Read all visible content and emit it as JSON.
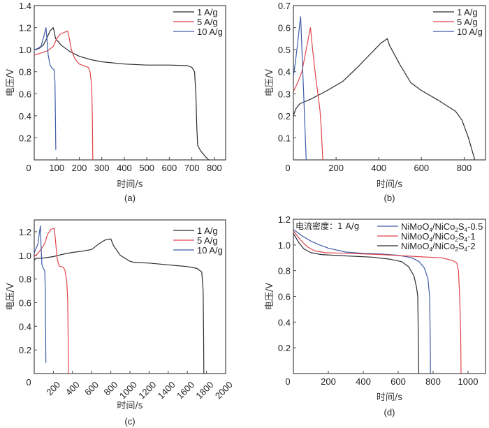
{
  "figure": {
    "colors": {
      "1 A/g": "#2b2b33",
      "5 A/g": "#e0454c",
      "10 A/g": "#3d5ca8",
      "axis": "#444444"
    }
  },
  "chart_data": [
    {
      "id": "a",
      "type": "line",
      "panel_label": "(a)",
      "title": "",
      "xlabel": "时间/s",
      "ylabel": "电压/V",
      "xlim": [
        0,
        850
      ],
      "ylim": [
        0,
        1.4
      ],
      "xticks": [
        0,
        100,
        200,
        300,
        400,
        500,
        600,
        700,
        800
      ],
      "yticks": [
        0.2,
        0.4,
        0.6,
        0.8,
        1.0,
        1.2,
        1.4
      ],
      "xtick_labels": [
        "0",
        "100",
        "200",
        "300",
        "400",
        "500",
        "600",
        "700",
        "800"
      ],
      "ytick_labels": [
        "0.2",
        "0.4",
        "0.6",
        "0.8",
        "1.0",
        "1.2",
        "1.4"
      ],
      "rotate_xticks": false,
      "legend": "top-right",
      "series": [
        {
          "name": "1 A/g",
          "color": "#2b2b33",
          "points": [
            [
              0,
              1.0
            ],
            [
              20,
              1.01
            ],
            [
              40,
              1.04
            ],
            [
              55,
              1.1
            ],
            [
              70,
              1.17
            ],
            [
              84,
              1.2
            ],
            [
              88,
              1.17
            ],
            [
              95,
              1.1
            ],
            [
              120,
              1.04
            ],
            [
              160,
              0.98
            ],
            [
              200,
              0.94
            ],
            [
              250,
              0.91
            ],
            [
              300,
              0.89
            ],
            [
              400,
              0.87
            ],
            [
              500,
              0.86
            ],
            [
              600,
              0.86
            ],
            [
              680,
              0.855
            ],
            [
              700,
              0.84
            ],
            [
              712,
              0.8
            ],
            [
              718,
              0.6
            ],
            [
              722,
              0.3
            ],
            [
              726,
              0.13
            ],
            [
              740,
              0.08
            ],
            [
              760,
              0.03
            ],
            [
              775,
              0.0
            ]
          ]
        },
        {
          "name": "5 A/g",
          "color": "#e0454c",
          "points": [
            [
              0,
              0.95
            ],
            [
              30,
              0.97
            ],
            [
              60,
              0.99
            ],
            [
              85,
              1.03
            ],
            [
              100,
              1.1
            ],
            [
              115,
              1.14
            ],
            [
              148,
              1.17
            ],
            [
              152,
              1.14
            ],
            [
              165,
              1.0
            ],
            [
              180,
              0.92
            ],
            [
              200,
              0.87
            ],
            [
              225,
              0.85
            ],
            [
              240,
              0.84
            ],
            [
              248,
              0.8
            ],
            [
              255,
              0.68
            ],
            [
              258,
              0.4
            ],
            [
              260,
              0.0
            ]
          ]
        },
        {
          "name": "10 A/g",
          "color": "#3d5ca8",
          "points": [
            [
              0,
              1.0
            ],
            [
              15,
              1.01
            ],
            [
              30,
              1.03
            ],
            [
              40,
              1.1
            ],
            [
              52,
              1.2
            ],
            [
              56,
              1.1
            ],
            [
              62,
              0.95
            ],
            [
              70,
              0.86
            ],
            [
              80,
              0.83
            ],
            [
              88,
              0.82
            ],
            [
              92,
              0.7
            ],
            [
              94,
              0.4
            ],
            [
              96,
              0.09
            ]
          ]
        }
      ]
    },
    {
      "id": "b",
      "type": "line",
      "panel_label": "(b)",
      "title": "",
      "xlabel": "时间/s",
      "ylabel": "电压/V",
      "xlim": [
        0,
        900
      ],
      "ylim": [
        0,
        0.7
      ],
      "xticks": [
        0,
        200,
        400,
        600,
        800
      ],
      "yticks": [
        0.1,
        0.2,
        0.3,
        0.4,
        0.5,
        0.6,
        0.7
      ],
      "xtick_labels": [
        "0",
        "200",
        "400",
        "600",
        "800"
      ],
      "ytick_labels": [
        "0.1",
        "0.2",
        "0.3",
        "0.4",
        "0.5",
        "0.6",
        "0.7"
      ],
      "rotate_xticks": false,
      "legend": "top-right",
      "series": [
        {
          "name": "1 A/g",
          "color": "#2b2b33",
          "points": [
            [
              0,
              0.2
            ],
            [
              10,
              0.23
            ],
            [
              30,
              0.255
            ],
            [
              80,
              0.275
            ],
            [
              150,
              0.31
            ],
            [
              230,
              0.355
            ],
            [
              300,
              0.42
            ],
            [
              360,
              0.48
            ],
            [
              410,
              0.53
            ],
            [
              440,
              0.55
            ],
            [
              450,
              0.52
            ],
            [
              500,
              0.43
            ],
            [
              550,
              0.35
            ],
            [
              600,
              0.315
            ],
            [
              680,
              0.27
            ],
            [
              760,
              0.22
            ],
            [
              790,
              0.18
            ],
            [
              820,
              0.1
            ],
            [
              850,
              0.0
            ]
          ]
        },
        {
          "name": "5 A/g",
          "color": "#e0454c",
          "points": [
            [
              0,
              0.31
            ],
            [
              20,
              0.35
            ],
            [
              40,
              0.4
            ],
            [
              60,
              0.5
            ],
            [
              80,
              0.6
            ],
            [
              90,
              0.5
            ],
            [
              105,
              0.37
            ],
            [
              115,
              0.3
            ],
            [
              125,
              0.22
            ],
            [
              130,
              0.15
            ],
            [
              135,
              0.05
            ],
            [
              138,
              0.0
            ]
          ]
        },
        {
          "name": "10 A/g",
          "color": "#3d5ca8",
          "points": [
            [
              0,
              0.38
            ],
            [
              10,
              0.45
            ],
            [
              20,
              0.53
            ],
            [
              30,
              0.62
            ],
            [
              34,
              0.65
            ],
            [
              38,
              0.55
            ],
            [
              42,
              0.45
            ],
            [
              48,
              0.3
            ],
            [
              54,
              0.15
            ],
            [
              58,
              0.05
            ],
            [
              60,
              0.0
            ]
          ]
        }
      ]
    },
    {
      "id": "c",
      "type": "line",
      "panel_label": "(c)",
      "title": "",
      "xlabel": "时间/s",
      "ylabel": "电压/V",
      "xlim": [
        0,
        2000
      ],
      "ylim": [
        0,
        1.3
      ],
      "xticks": [
        0,
        200,
        400,
        600,
        800,
        1000,
        1200,
        1400,
        1600,
        1800,
        2000
      ],
      "yticks": [
        0.2,
        0.4,
        0.6,
        0.8,
        1.0,
        1.2
      ],
      "xtick_labels": [
        "0",
        "200",
        "400",
        "600",
        "800",
        "1000",
        "1200",
        "1400",
        "1600",
        "1800",
        "2000"
      ],
      "ytick_labels": [
        "0.2",
        "0.4",
        "0.6",
        "0.8",
        "1.0",
        "1.2"
      ],
      "rotate_xticks": true,
      "legend": "top-right",
      "series": [
        {
          "name": "1 A/g",
          "color": "#2b2b33",
          "points": [
            [
              0,
              0.96
            ],
            [
              20,
              0.975
            ],
            [
              100,
              0.978
            ],
            [
              200,
              0.99
            ],
            [
              300,
              1.01
            ],
            [
              400,
              1.025
            ],
            [
              500,
              1.035
            ],
            [
              600,
              1.05
            ],
            [
              680,
              1.1
            ],
            [
              740,
              1.13
            ],
            [
              800,
              1.14
            ],
            [
              830,
              1.08
            ],
            [
              900,
              1.0
            ],
            [
              1000,
              0.95
            ],
            [
              1050,
              0.94
            ],
            [
              1200,
              0.935
            ],
            [
              1400,
              0.92
            ],
            [
              1600,
              0.905
            ],
            [
              1700,
              0.89
            ],
            [
              1750,
              0.86
            ],
            [
              1765,
              0.7
            ],
            [
              1770,
              0.3
            ],
            [
              1772,
              0.0
            ]
          ]
        },
        {
          "name": "5 A/g",
          "color": "#e0454c",
          "points": [
            [
              0,
              0.99
            ],
            [
              30,
              1.01
            ],
            [
              70,
              1.05
            ],
            [
              110,
              1.1
            ],
            [
              140,
              1.18
            ],
            [
              175,
              1.22
            ],
            [
              210,
              1.23
            ],
            [
              225,
              1.1
            ],
            [
              240,
              0.97
            ],
            [
              260,
              0.91
            ],
            [
              300,
              0.9
            ],
            [
              320,
              0.88
            ],
            [
              340,
              0.78
            ],
            [
              350,
              0.62
            ],
            [
              355,
              0.3
            ],
            [
              357,
              0.0
            ]
          ]
        },
        {
          "name": "10 A/g",
          "color": "#3d5ca8",
          "points": [
            [
              0,
              1.02
            ],
            [
              20,
              1.06
            ],
            [
              40,
              1.1
            ],
            [
              55,
              1.2
            ],
            [
              65,
              1.25
            ],
            [
              70,
              1.1
            ],
            [
              80,
              0.92
            ],
            [
              95,
              0.89
            ],
            [
              110,
              0.87
            ],
            [
              115,
              0.7
            ],
            [
              118,
              0.4
            ],
            [
              122,
              0.09
            ]
          ]
        }
      ]
    },
    {
      "id": "d",
      "type": "line",
      "panel_label": "(d)",
      "title": "",
      "xlabel": "时间/s",
      "ylabel": "电压/V",
      "xlim": [
        0,
        1100
      ],
      "ylim": [
        0,
        1.2
      ],
      "xticks": [
        0,
        200,
        400,
        600,
        800,
        1000
      ],
      "yticks": [
        0.2,
        0.4,
        0.6,
        0.8,
        1.0,
        1.2
      ],
      "xtick_labels": [
        "0",
        "200",
        "400",
        "600",
        "800",
        "1000"
      ],
      "ytick_labels": [
        "0.2",
        "0.4",
        "0.6",
        "0.8",
        "1.0",
        "1.2"
      ],
      "rotate_xticks": false,
      "legend": "top-right",
      "annotation": "电流密度：1 A/g",
      "series": [
        {
          "name": "NiMoO4/NiCo2S4-0.5",
          "label_parts": [
            "NiMoO",
            "4",
            "/NiCo",
            "2",
            "S",
            "4",
            "-0.5"
          ],
          "color": "#3d5ca8",
          "points": [
            [
              0,
              1.12
            ],
            [
              50,
              1.07
            ],
            [
              100,
              1.03
            ],
            [
              150,
              1.0
            ],
            [
              200,
              0.975
            ],
            [
              300,
              0.945
            ],
            [
              400,
              0.935
            ],
            [
              500,
              0.93
            ],
            [
              600,
              0.92
            ],
            [
              680,
              0.9
            ],
            [
              720,
              0.87
            ],
            [
              750,
              0.82
            ],
            [
              770,
              0.74
            ],
            [
              780,
              0.6
            ],
            [
              783,
              0.3
            ],
            [
              785,
              0.0
            ]
          ]
        },
        {
          "name": "NiMoO4/NiCo2S4-1",
          "label_parts": [
            "NiMoO",
            "4",
            "/NiCo",
            "2",
            "S",
            "4",
            "-1"
          ],
          "color": "#e0454c",
          "points": [
            [
              0,
              1.11
            ],
            [
              40,
              1.04
            ],
            [
              80,
              0.985
            ],
            [
              120,
              0.955
            ],
            [
              180,
              0.94
            ],
            [
              300,
              0.935
            ],
            [
              500,
              0.925
            ],
            [
              700,
              0.91
            ],
            [
              850,
              0.9
            ],
            [
              910,
              0.88
            ],
            [
              935,
              0.86
            ],
            [
              945,
              0.8
            ],
            [
              952,
              0.6
            ],
            [
              958,
              0.3
            ],
            [
              960,
              0.0
            ]
          ]
        },
        {
          "name": "NiMoO4/NiCo2S4-2",
          "label_parts": [
            "NiMoO",
            "4",
            "/NiCo",
            "2",
            "S",
            "4",
            "-2"
          ],
          "color": "#2b2b33",
          "points": [
            [
              0,
              1.09
            ],
            [
              30,
              1.02
            ],
            [
              60,
              0.97
            ],
            [
              100,
              0.94
            ],
            [
              160,
              0.925
            ],
            [
              300,
              0.915
            ],
            [
              450,
              0.905
            ],
            [
              550,
              0.89
            ],
            [
              620,
              0.87
            ],
            [
              660,
              0.83
            ],
            [
              690,
              0.76
            ],
            [
              705,
              0.67
            ],
            [
              712,
              0.6
            ],
            [
              715,
              0.3
            ],
            [
              718,
              0.0
            ]
          ]
        }
      ]
    }
  ]
}
